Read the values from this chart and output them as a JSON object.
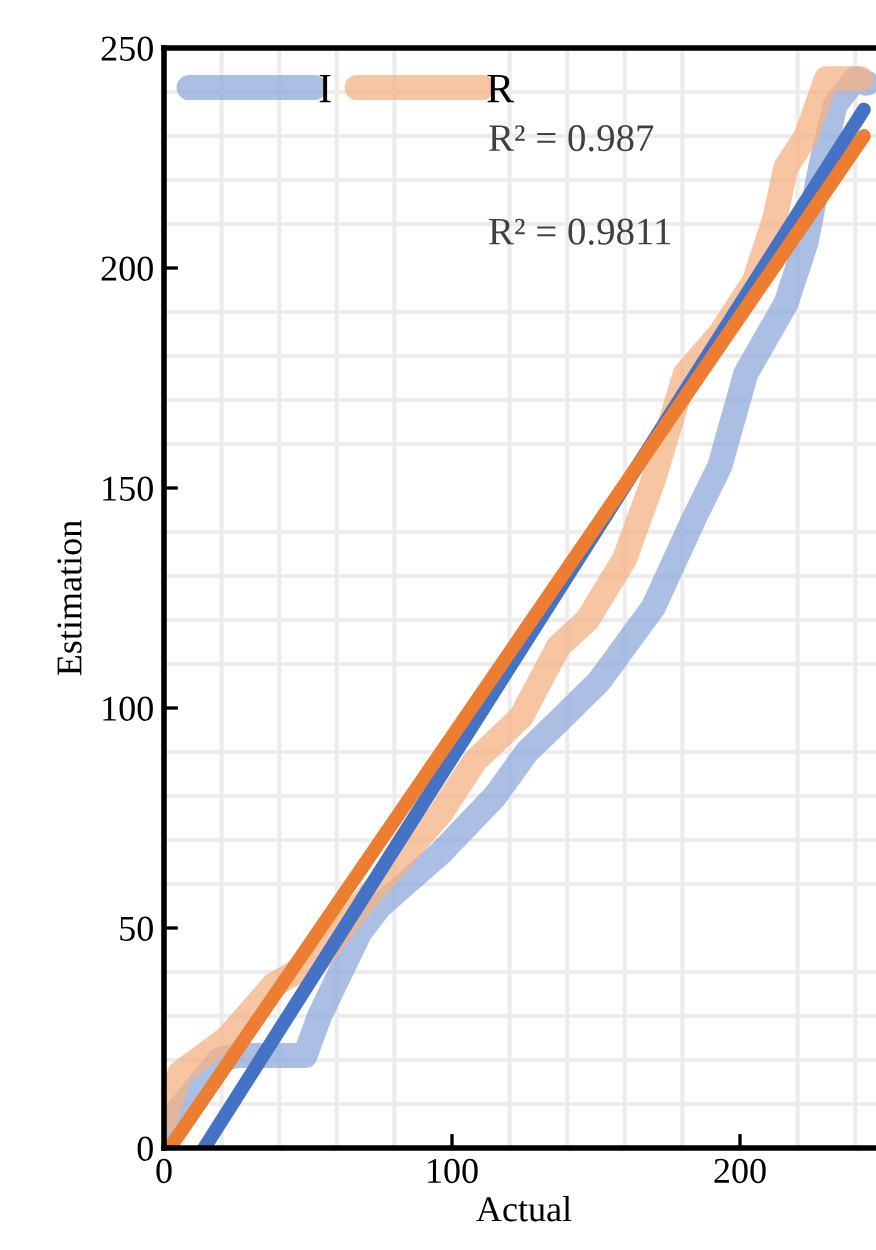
{
  "chart_data": {
    "type": "line",
    "xlabel": "Actual",
    "ylabel": "Estimation",
    "xlim": [
      0,
      250
    ],
    "ylim": [
      0,
      250
    ],
    "xticks": [
      0,
      100,
      200
    ],
    "yticks": [
      0,
      50,
      100,
      150,
      200,
      250
    ],
    "grid": true,
    "legend": "top left",
    "marker": "none",
    "line_style": "solid",
    "annotations": [
      "R² = 0.987",
      "R² = 0.9811"
    ],
    "series": [
      {
        "name": "I",
        "color": "#8faadc",
        "x": [
          0,
          5.5,
          19,
          25,
          35,
          49,
          54,
          68,
          75,
          96,
          115,
          126,
          137,
          151,
          170,
          184,
          193,
          202,
          216,
          223,
          228,
          233,
          240,
          244
        ],
        "values": [
          4,
          9,
          20,
          21,
          21,
          21,
          30,
          49,
          55,
          67,
          80,
          90,
          97,
          106,
          123,
          143,
          155,
          176,
          192,
          206,
          223,
          237,
          243,
          242
        ]
      },
      {
        "name": "R",
        "color": "#f4b183",
        "x": [
          0,
          5.5,
          22,
          38,
          54,
          68,
          80,
          96,
          108,
          124,
          137,
          147,
          160,
          170,
          181,
          193,
          205,
          212,
          216,
          223,
          230,
          242
        ],
        "values": [
          6,
          17,
          25,
          37,
          43,
          55,
          64,
          76,
          88,
          98,
          114,
          120,
          134,
          152,
          176,
          185,
          197,
          211,
          223,
          230,
          243,
          243
        ]
      },
      {
        "color": "#4472c4",
        "x": [
          14,
          243
        ],
        "values": [
          0,
          236
        ]
      },
      {
        "color": "#ed7d31",
        "x": [
          2,
          243
        ],
        "values": [
          0,
          230
        ]
      }
    ]
  }
}
